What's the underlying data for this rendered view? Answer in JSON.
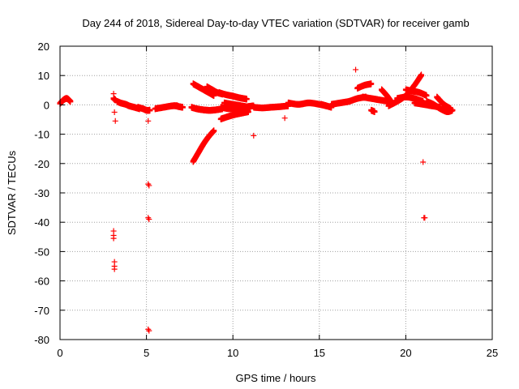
{
  "chart_data": {
    "type": "scatter",
    "title": "Day 244 of 2018, Sidereal Day-to-day VTEC variation (SDTVAR) for receiver gamb",
    "xlabel": "GPS time / hours",
    "ylabel": "SDTVAR / TECUs",
    "xlim": [
      0,
      25
    ],
    "ylim": [
      -80,
      20
    ],
    "xticks": [
      "0",
      "5",
      "10",
      "15",
      "20",
      "25"
    ],
    "yticks": [
      "20",
      "10",
      "0",
      "-10",
      "-20",
      "-30",
      "-40",
      "-50",
      "-60",
      "-70",
      "-80"
    ],
    "grid": true,
    "marker": "+",
    "color": "#ff0000",
    "segments": [
      {
        "x": [
          0.0,
          0.2,
          0.4,
          0.6
        ],
        "y": [
          0.3,
          1.5,
          2.0,
          1.0
        ]
      },
      {
        "x": [
          3.1,
          3.2
        ],
        "y": [
          2.0,
          1.5
        ]
      },
      {
        "x": [
          3.3,
          3.5,
          3.8,
          4.0,
          4.3,
          4.6
        ],
        "y": [
          1.0,
          0.5,
          0.0,
          -0.5,
          -1.0,
          -1.5
        ]
      },
      {
        "x": [
          4.5,
          4.8,
          5.0,
          5.2
        ],
        "y": [
          -1.0,
          -1.5,
          -2.0,
          -2.0
        ]
      },
      {
        "x": [
          5.5,
          6.0,
          6.5,
          6.8
        ],
        "y": [
          -1.5,
          -1.0,
          -0.5,
          -0.5
        ]
      },
      {
        "x": [
          6.7,
          6.9,
          7.1
        ],
        "y": [
          -0.5,
          -0.8,
          -1.0
        ]
      },
      {
        "x": [
          7.6,
          7.9,
          8.2,
          8.5,
          8.8,
          9.1,
          9.4
        ],
        "y": [
          -1.0,
          -1.5,
          -1.8,
          -2.0,
          -2.0,
          -1.8,
          -1.5
        ]
      },
      {
        "x": [
          7.7,
          8.0,
          8.3,
          8.6,
          8.9
        ],
        "y": [
          -19.5,
          -16.5,
          -13.5,
          -11.0,
          -9.0
        ]
      },
      {
        "x": [
          7.7,
          8.0,
          8.3,
          8.6,
          8.9
        ],
        "y": [
          7.0,
          6.0,
          5.0,
          4.0,
          3.0
        ]
      },
      {
        "x": [
          8.5,
          8.8,
          9.1,
          9.4
        ],
        "y": [
          6.0,
          5.0,
          4.0,
          3.5
        ]
      },
      {
        "x": [
          9.2,
          9.6,
          10.0,
          10.4,
          10.8
        ],
        "y": [
          4.0,
          3.3,
          2.8,
          2.2,
          1.8
        ]
      },
      {
        "x": [
          9.3,
          9.7,
          10.1,
          10.5,
          10.9
        ],
        "y": [
          -5.0,
          -4.2,
          -3.5,
          -3.0,
          -2.5
        ]
      },
      {
        "x": [
          9.3,
          9.8,
          10.3,
          10.8,
          11.2
        ],
        "y": [
          -1.0,
          -1.5,
          -1.2,
          -0.8,
          -0.5
        ]
      },
      {
        "x": [
          9.5,
          10.0,
          10.5,
          11.0
        ],
        "y": [
          0.5,
          0.0,
          -0.5,
          -1.0
        ]
      },
      {
        "x": [
          11.2,
          11.7,
          12.2,
          12.7,
          13.2
        ],
        "y": [
          -1.0,
          -1.2,
          -1.0,
          -0.8,
          -0.5
        ]
      },
      {
        "x": [
          13.2,
          13.8,
          14.4,
          15.0,
          15.4
        ],
        "y": [
          0.5,
          0.0,
          0.5,
          0.0,
          -0.5
        ]
      },
      {
        "x": [
          15.1,
          15.4,
          15.7
        ],
        "y": [
          0.0,
          -0.5,
          -1.0
        ]
      },
      {
        "x": [
          15.7,
          16.2,
          16.7,
          17.2,
          17.7
        ],
        "y": [
          0.0,
          0.5,
          1.0,
          2.0,
          2.5
        ]
      },
      {
        "x": [
          17.2,
          17.6,
          18.0
        ],
        "y": [
          5.5,
          6.5,
          7.0
        ]
      },
      {
        "x": [
          17.5,
          18.0,
          18.5,
          19.0
        ],
        "y": [
          2.5,
          2.0,
          1.5,
          1.0
        ]
      },
      {
        "x": [
          18.0,
          18.2
        ],
        "y": [
          -2.0,
          -2.5
        ]
      },
      {
        "x": [
          18.6,
          18.9,
          19.2
        ],
        "y": [
          5.0,
          3.0,
          0.5
        ]
      },
      {
        "x": [
          19.0,
          19.5,
          20.0,
          20.5,
          20.9
        ],
        "y": [
          -0.5,
          1.0,
          3.0,
          6.5,
          10.0
        ]
      },
      {
        "x": [
          19.5,
          20.0,
          20.5,
          21.0
        ],
        "y": [
          2.0,
          2.5,
          2.0,
          1.0
        ]
      },
      {
        "x": [
          20.0,
          20.4,
          20.8,
          21.2
        ],
        "y": [
          5.0,
          4.5,
          4.0,
          3.0
        ]
      },
      {
        "x": [
          20.5,
          21.0,
          21.5,
          22.0
        ],
        "y": [
          0.5,
          0.0,
          -0.5,
          -1.0
        ]
      },
      {
        "x": [
          21.2,
          21.6,
          22.0,
          22.4,
          22.7
        ],
        "y": [
          1.0,
          0.0,
          -1.5,
          -2.5,
          -2.0
        ]
      },
      {
        "x": [
          21.8,
          22.2,
          22.6
        ],
        "y": [
          2.5,
          0.0,
          -1.5
        ]
      }
    ],
    "points": [
      {
        "x": 3.1,
        "y": 3.8
      },
      {
        "x": 3.15,
        "y": -2.5
      },
      {
        "x": 3.2,
        "y": -5.5
      },
      {
        "x": 3.1,
        "y": -43.0
      },
      {
        "x": 3.1,
        "y": -44.5
      },
      {
        "x": 3.1,
        "y": -45.5
      },
      {
        "x": 3.15,
        "y": -53.5
      },
      {
        "x": 3.15,
        "y": -55.0
      },
      {
        "x": 3.15,
        "y": -56.0
      },
      {
        "x": 5.1,
        "y": -5.5
      },
      {
        "x": 5.1,
        "y": -27.0
      },
      {
        "x": 5.15,
        "y": -27.5
      },
      {
        "x": 5.1,
        "y": -38.5
      },
      {
        "x": 5.15,
        "y": -39.0
      },
      {
        "x": 5.1,
        "y": -76.5
      },
      {
        "x": 5.15,
        "y": -77.0
      },
      {
        "x": 11.2,
        "y": -10.5
      },
      {
        "x": 13.0,
        "y": -4.5
      },
      {
        "x": 17.1,
        "y": 12.0
      },
      {
        "x": 21.0,
        "y": -19.5
      },
      {
        "x": 21.05,
        "y": -38.5
      },
      {
        "x": 21.1,
        "y": -38.5
      }
    ]
  }
}
